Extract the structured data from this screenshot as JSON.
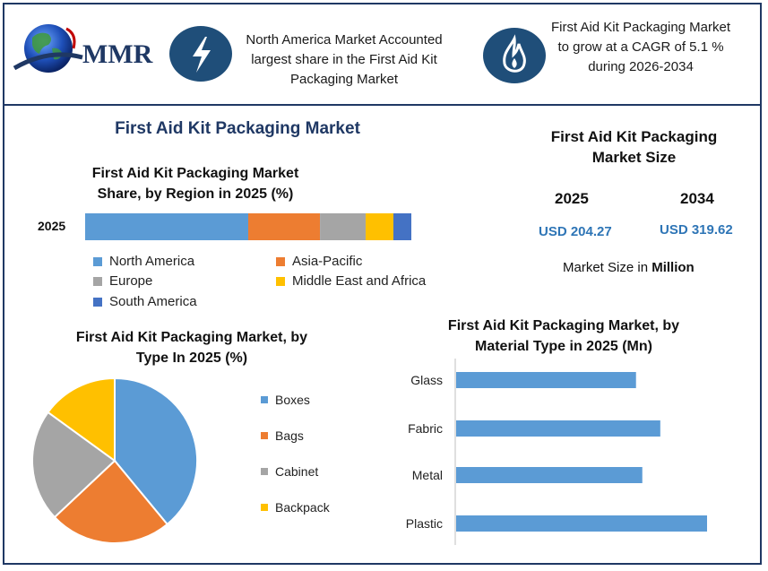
{
  "header": {
    "logo_text": "MMR",
    "box1_text": "North America Market Accounted largest share in the First Aid Kit Packaging Market",
    "box2_text": "First Aid Kit Packaging Market to grow at a CAGR of 5.1 % during 2026-2034",
    "icon1": "lightning-icon",
    "icon2": "flame-icon"
  },
  "main_title": "First Aid Kit Packaging Market",
  "market_size": {
    "title": "First Aid Kit Packaging Market Size",
    "year1": "2025",
    "year2": "2034",
    "value1": "USD 204.27",
    "value2": "USD 319.62",
    "note_prefix": "Market Size in ",
    "note_bold": "Million"
  },
  "colors": {
    "north_america": "#5b9bd5",
    "asia_pacific": "#ed7d31",
    "europe": "#a5a5a5",
    "mea": "#ffc000",
    "south_america": "#4472c4",
    "brand": "#1f3864"
  },
  "chart_data": [
    {
      "type": "bar",
      "orientation": "horizontal-stacked",
      "title": "First Aid Kit Packaging Market Share, by Region in 2025 (%)",
      "categories": [
        "2025"
      ],
      "series": [
        {
          "name": "North America",
          "values": [
            50
          ]
        },
        {
          "name": "Asia-Pacific",
          "values": [
            22
          ]
        },
        {
          "name": "Europe",
          "values": [
            14
          ]
        },
        {
          "name": "Middle East and Africa",
          "values": [
            8.5
          ]
        },
        {
          "name": "South America",
          "values": [
            5.5
          ]
        }
      ],
      "legend_position": "bottom"
    },
    {
      "type": "pie",
      "title": "First Aid Kit Packaging Market, by Type In 2025 (%)",
      "categories": [
        "Boxes",
        "Bags",
        "Cabinet",
        "Backpack"
      ],
      "values": [
        39,
        24,
        22,
        15
      ],
      "legend_position": "right"
    },
    {
      "type": "bar",
      "orientation": "horizontal",
      "title": "First Aid Kit Packaging Market, by Material Type in 2025 (Mn)",
      "categories": [
        "Glass",
        "Fabric",
        "Metal",
        "Plastic"
      ],
      "values": [
        200,
        227,
        207,
        279
      ]
    }
  ]
}
